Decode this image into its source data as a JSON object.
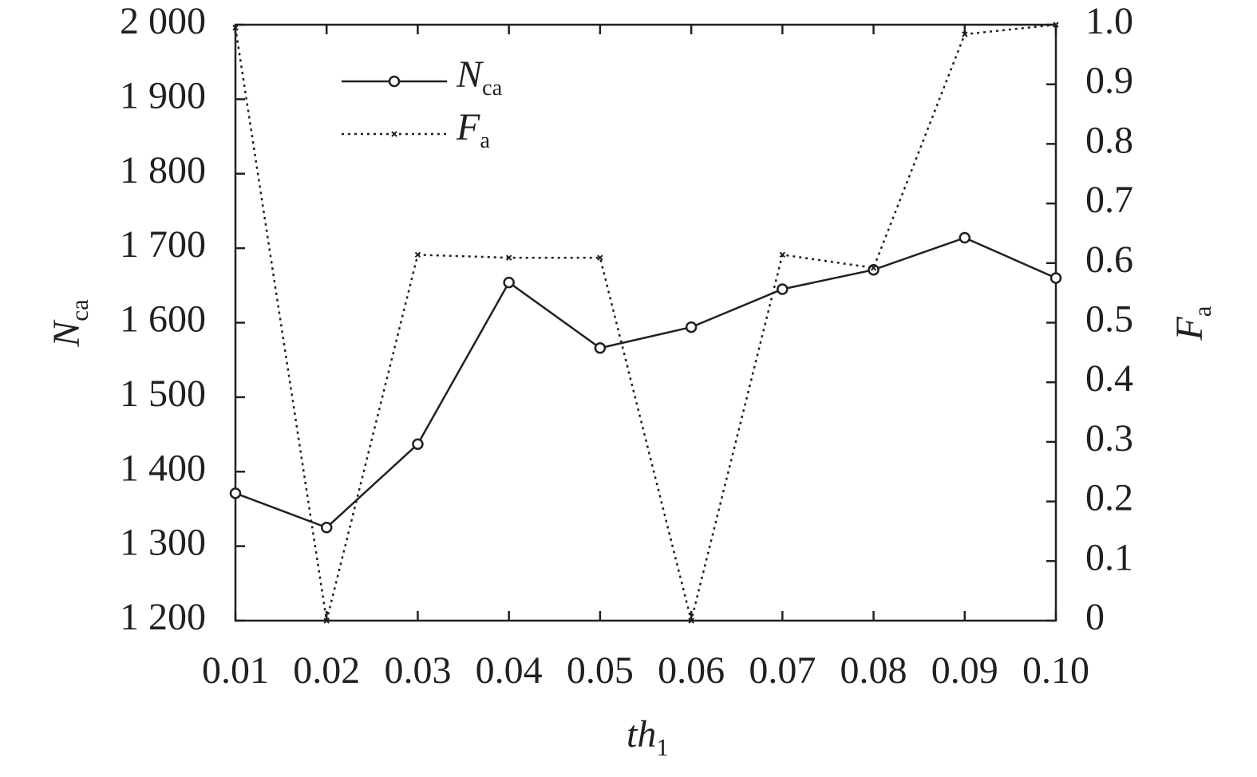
{
  "chart_data": {
    "type": "line",
    "x_label": "th1",
    "y_label": "Nca",
    "y2_label": "Fa",
    "x": [
      0.01,
      0.02,
      0.03,
      0.04,
      0.05,
      0.06,
      0.07,
      0.08,
      0.09,
      0.1
    ],
    "xlim": [
      0.01,
      0.1
    ],
    "xticks": [
      0.01,
      0.02,
      0.03,
      0.04,
      0.05,
      0.06,
      0.07,
      0.08,
      0.09,
      {
        "value": 0.1,
        "label": "0.10"
      }
    ],
    "ylim": [
      1200,
      2000
    ],
    "yticks": [
      {
        "value": 1200,
        "label": "1 200"
      },
      {
        "value": 1300,
        "label": "1 300"
      },
      {
        "value": 1400,
        "label": "1 400"
      },
      {
        "value": 1500,
        "label": "1 500"
      },
      {
        "value": 1600,
        "label": "1 600"
      },
      {
        "value": 1700,
        "label": "1 700"
      },
      {
        "value": 1800,
        "label": "1 800"
      },
      {
        "value": 1900,
        "label": "1 900"
      },
      {
        "value": 2000,
        "label": "2 000"
      }
    ],
    "y2lim": [
      0,
      1
    ],
    "y2ticks": [
      0,
      0.1,
      0.2,
      0.3,
      0.4,
      0.5,
      0.6,
      0.7,
      0.8,
      0.9,
      {
        "value": 1,
        "label": "1.0"
      }
    ],
    "legend": "upper left",
    "series": [
      {
        "name": "Nca",
        "color": "#231f20",
        "style": "solid",
        "marker": "circle",
        "values": [
          1371,
          1325,
          1437,
          1654,
          1566,
          1594,
          1645,
          1671,
          1714,
          1660
        ]
      },
      {
        "name": "Fa",
        "color": "#231f20",
        "style": "dotted",
        "marker": "x",
        "axis": "y2",
        "values": [
          0.995,
          0,
          0.614,
          0.609,
          0.609,
          0,
          0.614,
          0.592,
          0.984,
          1.0
        ]
      }
    ]
  }
}
